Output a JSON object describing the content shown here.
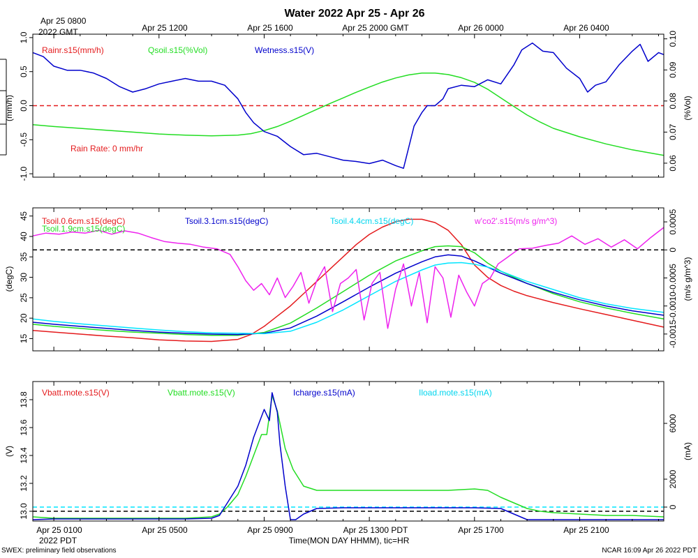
{
  "title": "Water 2022 Apr 25 - Apr 26",
  "gmt_axis": {
    "first_label": "Apr 25 0800",
    "first_label_sub": "2022 GMT",
    "labels": [
      "Apr 25 1200",
      "Apr 25 1600",
      "Apr 25 2000 GMT",
      "Apr 26 0000",
      "Apr 26 0400"
    ]
  },
  "pdt_axis": {
    "labels": [
      "Apr 25 0100",
      "Apr 25 0500",
      "Apr 25 0900",
      "Apr 25 1300 PDT",
      "Apr 25 1700",
      "Apr 25 2100"
    ],
    "sub_label": "2022 PDT",
    "xlabel": "Time(MON DAY HHMM), tic=HR"
  },
  "footer": {
    "left": "SWEX: preliminary field observations",
    "right": "NCAR 16:09 Apr 26 2022 PDT"
  },
  "colors": {
    "red": "#e41a1c",
    "green": "#22dd22",
    "blue": "#0000cc",
    "cyan": "#00e5ff",
    "magenta": "#ee22ee",
    "black": "#000000"
  },
  "chart_data": [
    {
      "type": "line",
      "panel": "water",
      "x_unit": "hours since Apr 25 0000 PDT",
      "xlim": [
        0.2,
        24.2
      ],
      "left_axis": {
        "label": "(mm/h)",
        "ticks": [
          "-1.0",
          "-0.5",
          "0.0",
          "0.5",
          "1.0"
        ],
        "ylim": [
          -1.05,
          1.05
        ]
      },
      "right_axis": {
        "label": "(%Vol)",
        "ticks": [
          "0.06",
          "0.07",
          "0.08",
          "0.09",
          "0.10"
        ],
        "ylim": [
          0.0555,
          0.1015
        ]
      },
      "legend": [
        "Rainr.s15(mm/h)",
        "Qsoil.s15(%Vol)",
        "Wetness.s15(V)"
      ],
      "annotation": "Rain Rate: 0 mm/hr",
      "series": [
        {
          "name": "Rainr.s15(mm/h)",
          "axis": "left",
          "color": "red",
          "dashed": true,
          "x": [
            0.2,
            24.2
          ],
          "y": [
            0.0,
            0.0
          ]
        },
        {
          "name": "Qsoil.s15(%Vol)",
          "axis": "right",
          "color": "green",
          "x": [
            0.2,
            1,
            2,
            3,
            4,
            5,
            6,
            7,
            8,
            8.5,
            9,
            9.5,
            10,
            10.5,
            11,
            11.5,
            12,
            12.5,
            13,
            13.5,
            14,
            14.5,
            15,
            15.5,
            16,
            16.5,
            17,
            17.5,
            18,
            18.5,
            19,
            19.5,
            20,
            21,
            22,
            23,
            24.2
          ],
          "y": [
            0.0724,
            0.0718,
            0.0712,
            0.0706,
            0.07,
            0.0694,
            0.069,
            0.0688,
            0.069,
            0.0695,
            0.0705,
            0.0718,
            0.0735,
            0.0754,
            0.0773,
            0.0792,
            0.081,
            0.0828,
            0.0845,
            0.0861,
            0.0874,
            0.0884,
            0.089,
            0.089,
            0.0885,
            0.0875,
            0.086,
            0.0838,
            0.081,
            0.0782,
            0.0755,
            0.0732,
            0.0712,
            0.0685,
            0.0662,
            0.0643,
            0.0625
          ]
        },
        {
          "name": "Wetness.s15(V)",
          "axis": "left",
          "color": "blue",
          "x": [
            0.2,
            0.6,
            1,
            1.5,
            2,
            2.5,
            3,
            3.5,
            4,
            4.5,
            5,
            5.5,
            6,
            6.5,
            7,
            7.5,
            8,
            8.3,
            8.6,
            9,
            9.5,
            10,
            10.5,
            11,
            11.5,
            12,
            12.5,
            13,
            13.5,
            14,
            14.3,
            14.7,
            15,
            15.2,
            15.5,
            15.8,
            16,
            16.5,
            17,
            17.5,
            18,
            18.5,
            18.8,
            19.2,
            19.6,
            20,
            20.5,
            21,
            21.3,
            21.6,
            22,
            22.5,
            23,
            23.3,
            23.6,
            24,
            24.2
          ],
          "y": [
            0.78,
            0.72,
            0.58,
            0.52,
            0.52,
            0.48,
            0.4,
            0.28,
            0.2,
            0.25,
            0.32,
            0.36,
            0.4,
            0.36,
            0.36,
            0.3,
            0.1,
            -0.1,
            -0.25,
            -0.38,
            -0.45,
            -0.6,
            -0.72,
            -0.7,
            -0.75,
            -0.8,
            -0.82,
            -0.85,
            -0.8,
            -0.88,
            -0.92,
            -0.3,
            -0.1,
            0.0,
            0.0,
            0.1,
            0.25,
            0.3,
            0.28,
            0.38,
            0.32,
            0.6,
            0.82,
            0.92,
            0.8,
            0.78,
            0.55,
            0.4,
            0.2,
            0.3,
            0.35,
            0.6,
            0.8,
            0.9,
            0.65,
            0.78,
            0.75
          ]
        }
      ]
    },
    {
      "type": "line",
      "panel": "soil-temperature",
      "x_unit": "hours since Apr 25 0000 PDT",
      "xlim": [
        0.2,
        24.2
      ],
      "left_axis": {
        "label": "(degC)",
        "ticks": [
          "15",
          "20",
          "25",
          "30",
          "35",
          "40",
          "45"
        ],
        "ylim": [
          12,
          47
        ]
      },
      "right_axis": {
        "label": "(m/s g/m^3)",
        "ticks": [
          "-0.0015",
          "-0.0010",
          "-0.0005",
          "0",
          "0.0005"
        ],
        "ylim": [
          -0.0018,
          0.00075
        ]
      },
      "legend": [
        "Tsoil.0.6cm.s15(degC)",
        "Tsoil.1.9cm.s15(degC)",
        "Tsoil.3.1cm.s15(degC)",
        "Tsoil.4.4cm.s15(degC)",
        "w'co2'.s15(m/s g/m^3)"
      ],
      "series": [
        {
          "name": "Tsoil.0.6cm.s15(degC)",
          "axis": "left",
          "color": "red",
          "x": [
            0.2,
            1,
            2,
            3,
            4,
            5,
            6,
            7,
            8,
            8.5,
            9,
            9.5,
            10,
            10.5,
            11,
            11.5,
            12,
            12.5,
            13,
            13.5,
            14,
            14.5,
            15,
            15.5,
            16,
            16.5,
            17,
            17.5,
            18,
            18.5,
            19,
            20,
            21,
            22,
            23,
            24.2
          ],
          "y": [
            17.0,
            16.6,
            16.1,
            15.6,
            15.2,
            14.7,
            14.4,
            14.3,
            14.8,
            16.0,
            18.0,
            20.5,
            23.0,
            26.0,
            29.0,
            32.0,
            35.0,
            38.0,
            40.5,
            42.3,
            43.6,
            44.2,
            44.2,
            43.4,
            41.5,
            38.0,
            33.0,
            30.0,
            28.0,
            26.6,
            25.5,
            23.8,
            22.3,
            20.9,
            19.5,
            17.8
          ]
        },
        {
          "name": "Tsoil.1.9cm.s15(degC)",
          "axis": "left",
          "color": "green",
          "x": [
            0.2,
            1,
            2,
            3,
            4,
            5,
            6,
            7,
            8,
            9,
            10,
            11,
            12,
            13,
            14,
            15,
            15.5,
            16,
            16.5,
            17,
            17.5,
            18,
            19,
            20,
            21,
            22,
            23,
            24.2
          ],
          "y": [
            18.5,
            18.0,
            17.5,
            17.0,
            16.6,
            16.3,
            16.0,
            15.8,
            15.8,
            16.5,
            18.8,
            22.5,
            26.5,
            30.5,
            34.0,
            36.5,
            37.5,
            37.7,
            37.5,
            36.0,
            33.5,
            31.5,
            28.5,
            26.0,
            24.0,
            22.5,
            21.2,
            19.8
          ]
        },
        {
          "name": "Tsoil.3.1cm.s15(degC)",
          "axis": "left",
          "color": "blue",
          "x": [
            0.2,
            1,
            2,
            3,
            4,
            5,
            6,
            7,
            8,
            9,
            10,
            11,
            12,
            13,
            14,
            15,
            15.5,
            16,
            16.5,
            17,
            17.5,
            18,
            19,
            20,
            21,
            22,
            23,
            24.2
          ],
          "y": [
            19.0,
            18.5,
            18.0,
            17.5,
            17.0,
            16.6,
            16.3,
            16.1,
            16.0,
            16.3,
            17.6,
            20.5,
            24.0,
            27.6,
            31.0,
            33.8,
            35.0,
            35.5,
            35.2,
            34.0,
            32.5,
            31.0,
            28.5,
            26.3,
            24.5,
            23.0,
            21.8,
            20.7
          ]
        },
        {
          "name": "Tsoil.4.4cm.s15(degC)",
          "axis": "left",
          "color": "cyan",
          "x": [
            0.2,
            1,
            2,
            3,
            4,
            5,
            6,
            7,
            8,
            9,
            10,
            11,
            12,
            13,
            14,
            15,
            15.5,
            16,
            16.5,
            17,
            17.5,
            18,
            19,
            20,
            21,
            22,
            23,
            24.2
          ],
          "y": [
            19.8,
            19.2,
            18.6,
            18.1,
            17.6,
            17.1,
            16.7,
            16.4,
            16.3,
            16.2,
            16.8,
            19.0,
            22.0,
            25.5,
            29.0,
            31.8,
            33.0,
            33.5,
            33.6,
            33.2,
            32.5,
            31.5,
            29.0,
            27.0,
            25.0,
            23.5,
            22.4,
            21.4
          ]
        },
        {
          "name": "w'co2'.s15(m/s g/m^3)",
          "axis": "right",
          "color": "magenta",
          "x": [
            0.2,
            0.7,
            1.2,
            1.7,
            2.2,
            2.7,
            3.2,
            3.7,
            4.2,
            4.7,
            5.2,
            5.7,
            6.2,
            6.7,
            7.2,
            7.7,
            8.0,
            8.3,
            8.6,
            8.9,
            9.2,
            9.5,
            9.8,
            10.1,
            10.4,
            10.7,
            11.0,
            11.3,
            11.6,
            11.9,
            12.2,
            12.5,
            12.8,
            13.1,
            13.4,
            13.7,
            14.0,
            14.3,
            14.6,
            14.9,
            15.2,
            15.5,
            15.8,
            16.1,
            16.4,
            16.7,
            17.0,
            17.3,
            17.6,
            17.9,
            18.2,
            18.7,
            19.2,
            19.7,
            20.2,
            20.7,
            21.2,
            21.7,
            22.2,
            22.7,
            23.2,
            23.7,
            24.2
          ],
          "y": [
            0.00025,
            0.0003,
            0.00028,
            0.00032,
            0.0003,
            0.00035,
            0.00028,
            0.00034,
            0.0003,
            0.00022,
            0.00015,
            0.00012,
            0.0001,
            5e-05,
            2e-05,
            -8e-05,
            -0.0003,
            -0.00055,
            -0.00072,
            -0.0006,
            -0.0008,
            -0.0005,
            -0.00085,
            -0.00065,
            -0.0004,
            -0.00095,
            -0.00055,
            -0.0003,
            -0.0011,
            -0.0006,
            -0.0005,
            -0.00035,
            -0.00125,
            -0.0006,
            -0.0004,
            -0.0014,
            -0.0007,
            -0.00025,
            -0.001,
            -0.0004,
            -0.0013,
            -0.0003,
            -0.0005,
            -0.0012,
            -0.00045,
            -0.00075,
            -0.001,
            -0.0006,
            -0.0005,
            -0.00025,
            -0.00015,
            2e-05,
            3e-05,
            8e-05,
            0.00012,
            0.00025,
            0.0001,
            0.0002,
            5e-05,
            0.00018,
            2e-05,
            0.00022,
            0.0004
          ]
        },
        {
          "name": "zero-reference",
          "axis": "right",
          "color": "black",
          "dashed": true,
          "x": [
            0.2,
            24.2
          ],
          "y": [
            0,
            0
          ]
        }
      ]
    },
    {
      "type": "line",
      "panel": "power",
      "x_unit": "hours since Apr 25 0000 PDT",
      "xlim": [
        0.2,
        24.2
      ],
      "left_axis": {
        "label": "(V)",
        "ticks": [
          "13.0",
          "13.2",
          "13.4",
          "13.6",
          "13.8"
        ],
        "ylim": [
          12.93,
          13.93
        ]
      },
      "right_axis": {
        "label": "(mA)",
        "ticks": [
          "0",
          "2000",
          "6000"
        ],
        "ylim": [
          -1000,
          9000
        ]
      },
      "legend": [
        "Vbatt.mote.s15(V)",
        "Vbatt.mote.s15(V)",
        "Icharge.s15(mA)",
        "Iload.mote.s15(mA)"
      ],
      "series": [
        {
          "name": "Iload.mote.s15(mA)",
          "axis": "right",
          "color": "cyan",
          "dashed": true,
          "x": [
            0.2,
            24.2
          ],
          "y": [
            0,
            0
          ]
        },
        {
          "name": "Vbatt.mote.s15(V)",
          "axis": "left",
          "color": "black",
          "dashed": true,
          "x": [
            0.2,
            24.2
          ],
          "y": [
            13.0,
            13.0
          ]
        },
        {
          "name": "Vbatt.mote.s15(V) (green)",
          "axis": "left",
          "color": "green",
          "x": [
            0.2,
            1,
            2,
            3,
            4,
            5,
            6,
            7,
            7.3,
            7.6,
            8,
            8.3,
            8.6,
            8.9,
            9.1,
            9.3,
            9.5,
            9.8,
            10.1,
            10.5,
            11,
            12,
            13,
            14,
            15,
            16,
            17,
            17.5,
            18,
            18.5,
            19,
            19.5,
            20,
            21,
            22,
            23,
            24.2
          ],
          "y": [
            12.96,
            12.95,
            12.95,
            12.95,
            12.95,
            12.95,
            12.95,
            12.96,
            12.98,
            13.03,
            13.12,
            13.25,
            13.4,
            13.55,
            13.55,
            13.83,
            13.72,
            13.45,
            13.3,
            13.18,
            13.15,
            13.15,
            13.15,
            13.15,
            13.15,
            13.15,
            13.16,
            13.15,
            13.1,
            13.06,
            13.02,
            13.0,
            12.99,
            12.98,
            12.97,
            12.97,
            12.96
          ]
        },
        {
          "name": "Icharge.s15(mA)",
          "axis": "right",
          "color": "blue",
          "x": [
            0.2,
            1,
            2,
            3,
            4,
            5,
            6,
            7,
            7.3,
            7.6,
            8,
            8.3,
            8.6,
            8.9,
            9.0,
            9.2,
            9.3,
            9.5,
            9.6,
            9.8,
            10.0,
            10.2,
            10.5,
            11,
            12,
            14,
            16,
            17,
            18,
            18.5,
            19,
            20,
            21,
            22,
            24.2
          ],
          "y": [
            -900,
            -850,
            -850,
            -850,
            -850,
            -850,
            -850,
            -800,
            -600,
            300,
            1500,
            3000,
            5000,
            6500,
            7000,
            6200,
            8200,
            6800,
            4500,
            1500,
            -900,
            -900,
            -500,
            -100,
            -50,
            -50,
            -50,
            -50,
            -100,
            -500,
            -900,
            -900,
            -900,
            -900,
            -900
          ]
        }
      ]
    }
  ]
}
